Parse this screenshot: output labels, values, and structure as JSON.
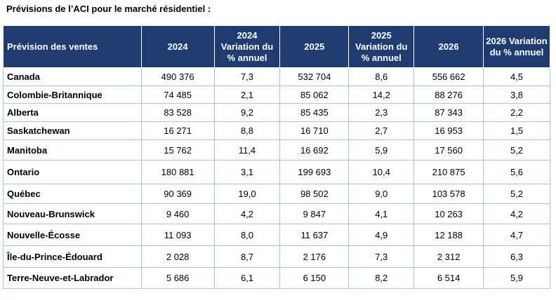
{
  "title": "Prévisions de l’ACI pour le marché résidentiel :",
  "table": {
    "headers": [
      "Prévision des ventes",
      "2024",
      "2024 Variation du % annuel",
      "2025",
      "2025 Variation du % annuel",
      "2026",
      "2026 Variation du % annuel"
    ],
    "rows": [
      [
        "Canada",
        "490 376",
        "7,3",
        "532 704",
        "8,6",
        "556 662",
        "4,5"
      ],
      [
        "Colombie-Britannique",
        "74 485",
        "2,1",
        "85 062",
        "14,2",
        "88 276",
        "3,8"
      ],
      [
        "Alberta",
        "83 528",
        "9,2",
        "85 435",
        "2,3",
        "87 343",
        "2,2"
      ],
      [
        "Saskatchewan",
        "16 271",
        "8,8",
        "16 710",
        "2,7",
        "16 953",
        "1,5"
      ],
      [
        "Manitoba",
        "15 762",
        "11,4",
        "16 692",
        "5,9",
        "17 560",
        "5,2"
      ],
      [
        "Ontario",
        "180 881",
        "3,1",
        "199 693",
        "10,4",
        "210 875",
        "5,6"
      ],
      [
        "Québec",
        "90 369",
        "19,0",
        "98 502",
        "9,0",
        "103 578",
        "5,2"
      ],
      [
        "Nouveau-Brunswick",
        "9 460",
        "4,2",
        "9 847",
        "4,1",
        "10 263",
        "4,2"
      ],
      [
        "Nouvelle-Écosse",
        "11 093",
        "8,0",
        "11 637",
        "4,9",
        "12 188",
        "4,7"
      ],
      [
        "Île-du-Prince-Édouard",
        "2 028",
        "8,7",
        "2 176",
        "7,3",
        "2 312",
        "6,3"
      ],
      [
        "Terre-Neuve-et-Labrador",
        "5 686",
        "6,1",
        "6 150",
        "8,2",
        "6 514",
        "5,9"
      ]
    ]
  }
}
